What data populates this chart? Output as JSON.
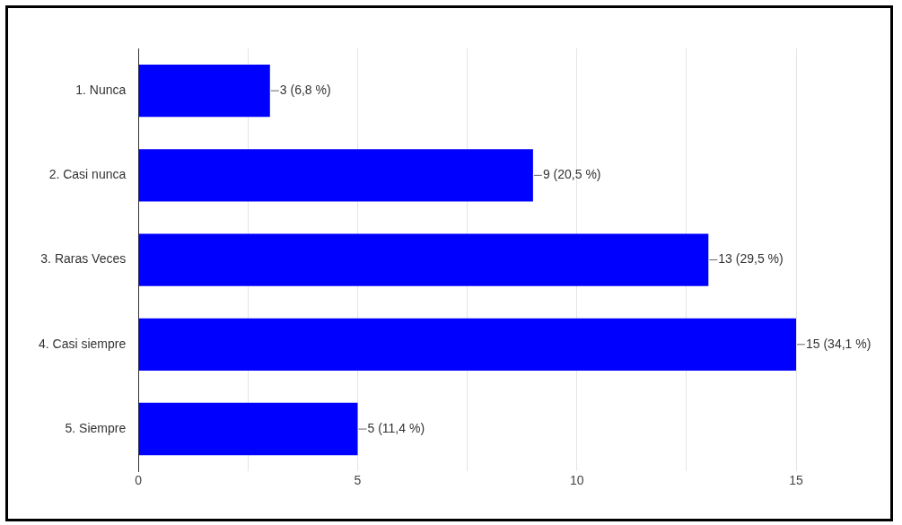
{
  "chart_data": {
    "type": "bar",
    "orientation": "horizontal",
    "categories": [
      "1. Nunca",
      "2. Casi nunca",
      "3. Raras Veces",
      "4. Casi siempre",
      "5. Siempre"
    ],
    "values": [
      3,
      9,
      13,
      15,
      5
    ],
    "color": "#0000ff",
    "value_labels": [
      "3 (6,8 %)",
      "9 (20,5 %)",
      "13 (29,5 %)",
      "15 (34,1 %)",
      "5 (11,4 %)"
    ],
    "xlim": [
      0,
      15
    ],
    "xticks": [
      0,
      {
        "value": 2.5,
        "label": null
      },
      5,
      {
        "value": 7.5,
        "label": null
      },
      10,
      {
        "value": 12.5,
        "label": null
      },
      15
    ],
    "grid": "x",
    "legend": false
  }
}
